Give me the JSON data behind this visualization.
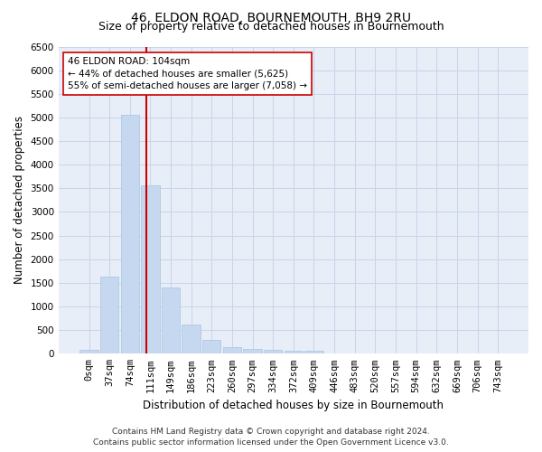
{
  "title": "46, ELDON ROAD, BOURNEMOUTH, BH9 2RU",
  "subtitle": "Size of property relative to detached houses in Bournemouth",
  "xlabel": "Distribution of detached houses by size in Bournemouth",
  "ylabel": "Number of detached properties",
  "footer_line1": "Contains HM Land Registry data © Crown copyright and database right 2024.",
  "footer_line2": "Contains public sector information licensed under the Open Government Licence v3.0.",
  "bar_labels": [
    "0sqm",
    "37sqm",
    "74sqm",
    "111sqm",
    "149sqm",
    "186sqm",
    "223sqm",
    "260sqm",
    "297sqm",
    "334sqm",
    "372sqm",
    "409sqm",
    "446sqm",
    "483sqm",
    "520sqm",
    "557sqm",
    "594sqm",
    "632sqm",
    "669sqm",
    "706sqm",
    "743sqm"
  ],
  "bar_values": [
    75,
    1630,
    5060,
    3560,
    1400,
    620,
    290,
    140,
    100,
    75,
    55,
    55,
    0,
    0,
    0,
    0,
    0,
    0,
    0,
    0,
    0
  ],
  "bar_color": "#c5d8f0",
  "bar_edge_color": "#a8c4e0",
  "grid_color": "#c8d4e8",
  "background_color": "#e8eef8",
  "vline_color": "#cc0000",
  "annotation_text": "46 ELDON ROAD: 104sqm\n← 44% of detached houses are smaller (5,625)\n55% of semi-detached houses are larger (7,058) →",
  "annotation_box_color": "#ffffff",
  "annotation_box_edge_color": "#cc0000",
  "ylim": [
    0,
    6500
  ],
  "yticks": [
    0,
    500,
    1000,
    1500,
    2000,
    2500,
    3000,
    3500,
    4000,
    4500,
    5000,
    5500,
    6000,
    6500
  ],
  "title_fontsize": 10,
  "subtitle_fontsize": 9,
  "axis_label_fontsize": 8.5,
  "tick_fontsize": 7.5,
  "footer_fontsize": 6.5,
  "annotation_fontsize": 7.5
}
